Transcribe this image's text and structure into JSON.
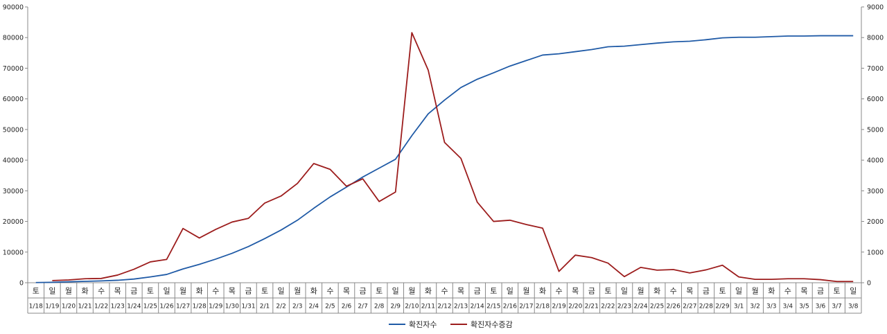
{
  "chart_data": {
    "type": "line",
    "title": "",
    "xlabel": "",
    "ylabel": "",
    "categories": [
      "1/18",
      "1/19",
      "1/20",
      "1/21",
      "1/22",
      "1/23",
      "1/24",
      "1/25",
      "1/26",
      "1/27",
      "1/28",
      "1/29",
      "1/30",
      "1/31",
      "2/1",
      "2/2",
      "2/3",
      "2/4",
      "2/5",
      "2/6",
      "2/7",
      "2/8",
      "2/9",
      "2/10",
      "2/11",
      "2/12",
      "2/13",
      "2/14",
      "2/15",
      "2/16",
      "2/17",
      "2/18",
      "2/19",
      "2/20",
      "2/21",
      "2/22",
      "2/23",
      "2/24",
      "2/25",
      "2/26",
      "2/27",
      "2/28",
      "2/29",
      "3/1",
      "3/2",
      "3/3",
      "3/4",
      "3/5",
      "3/6",
      "3/7",
      "3/8"
    ],
    "weekdays": [
      "토",
      "일",
      "월",
      "화",
      "수",
      "목",
      "금",
      "토",
      "일",
      "월",
      "화",
      "수",
      "목",
      "금",
      "토",
      "일",
      "월",
      "화",
      "수",
      "목",
      "금",
      "토",
      "일",
      "월",
      "화",
      "수",
      "목",
      "금",
      "토",
      "일",
      "월",
      "화",
      "수",
      "목",
      "금",
      "토",
      "일",
      "월",
      "화",
      "수",
      "목",
      "금",
      "토",
      "일",
      "월",
      "화",
      "수",
      "목",
      "금",
      "토",
      "일"
    ],
    "left_axis": {
      "ylim": [
        0,
        90000
      ],
      "ticks": [
        "0",
        "10000",
        "20000",
        "30000",
        "40000",
        "50000",
        "60000",
        "70000",
        "80000",
        "90000"
      ]
    },
    "right_axis": {
      "ylim": [
        0,
        9000
      ],
      "ticks": [
        "0",
        "1000",
        "2000",
        "3000",
        "4000",
        "5000",
        "6000",
        "7000",
        "8000",
        "9000"
      ]
    },
    "series": [
      {
        "name": "확진자수",
        "axis": "left",
        "color": "#1f5aa6",
        "values": [
          50,
          150,
          300,
          450,
          600,
          800,
          1200,
          1900,
          2700,
          4500,
          6000,
          7700,
          9600,
          11800,
          14400,
          17200,
          20400,
          24300,
          28000,
          31200,
          34500,
          37400,
          40300,
          48000,
          55100,
          59600,
          63700,
          66400,
          68500,
          70700,
          72500,
          74300,
          74700,
          75400,
          76100,
          77000,
          77200,
          77700,
          78200,
          78600,
          78800,
          79300,
          79900,
          80100,
          80100,
          80300,
          80500,
          80500,
          80600,
          80600,
          80600
        ]
      },
      {
        "name": "확진자수증감",
        "axis": "right",
        "color": "#9c1c1c",
        "values": [
          null,
          70,
          90,
          130,
          140,
          250,
          440,
          680,
          760,
          1770,
          1460,
          1740,
          1980,
          2100,
          2600,
          2830,
          3240,
          3890,
          3700,
          3150,
          3390,
          2650,
          2960,
          8160,
          6940,
          4580,
          4060,
          2630,
          2000,
          2040,
          1900,
          1780,
          370,
          900,
          820,
          640,
          200,
          500,
          410,
          430,
          320,
          420,
          570,
          190,
          110,
          110,
          130,
          130,
          100,
          40,
          40
        ]
      }
    ],
    "legend": "bottom-center",
    "grid": false
  }
}
